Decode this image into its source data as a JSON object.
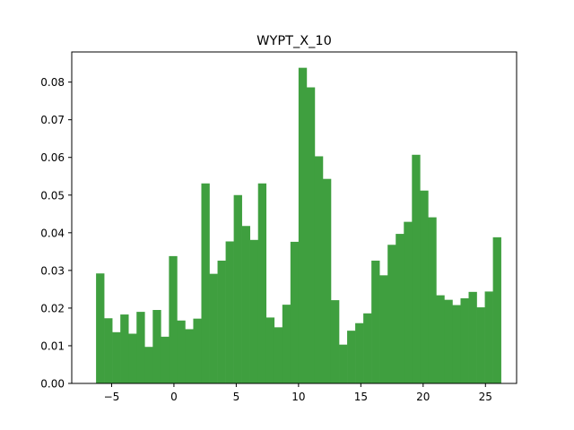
{
  "chart_data": {
    "type": "bar",
    "title": "WYPT_X_10",
    "xlabel": "",
    "ylabel": "",
    "bar_color": "#3f9f3f",
    "x_start": -6.25,
    "bin_width": 0.65,
    "values": [
      0.0292,
      0.0173,
      0.0136,
      0.0183,
      0.0132,
      0.019,
      0.0097,
      0.0195,
      0.0124,
      0.0338,
      0.0167,
      0.0144,
      0.0172,
      0.0531,
      0.0291,
      0.0326,
      0.0377,
      0.05,
      0.0418,
      0.0381,
      0.0531,
      0.0175,
      0.0149,
      0.0209,
      0.0376,
      0.0838,
      0.0786,
      0.0603,
      0.0543,
      0.0221,
      0.0103,
      0.014,
      0.016,
      0.0186,
      0.0326,
      0.0287,
      0.0368,
      0.0397,
      0.0429,
      0.0607,
      0.0512,
      0.0441,
      0.0234,
      0.0222,
      0.0208,
      0.0226,
      0.0243,
      0.0202,
      0.0244,
      0.0388
    ],
    "xlim": [
      -8.2,
      27.5
    ],
    "ylim": [
      0,
      0.088
    ],
    "xticks": [
      -5,
      0,
      5,
      10,
      15,
      20,
      25
    ],
    "xtick_labels": [
      "−5",
      "0",
      "5",
      "10",
      "15",
      "20",
      "25"
    ],
    "yticks": [
      0.0,
      0.01,
      0.02,
      0.03,
      0.04,
      0.05,
      0.06,
      0.07,
      0.08
    ],
    "ytick_labels": [
      "0.00",
      "0.01",
      "0.02",
      "0.03",
      "0.04",
      "0.05",
      "0.06",
      "0.07",
      "0.08"
    ],
    "grid": false,
    "legend": "none"
  }
}
